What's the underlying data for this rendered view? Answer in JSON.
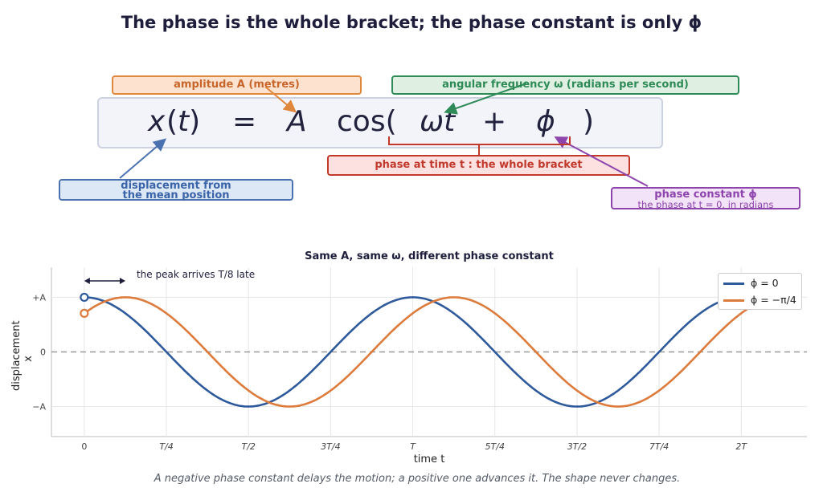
{
  "title": "The phase is the whole bracket; the phase constant is only ϕ",
  "equation": {
    "x": "x",
    "t_arg": "(t)",
    "equals": "=",
    "A": "A",
    "cos": "cos(",
    "omega_t": "ωt",
    "plus": "+",
    "phi": "ϕ",
    "close": ")"
  },
  "callouts": {
    "amplitude": "amplitude A (metres)",
    "angular": "angular frequency ω (radians per second)",
    "phase": "phase at time t :  the whole bracket",
    "displacement_line1": "displacement from",
    "displacement_line2": "the mean position",
    "phase_constant": "phase constant ϕ",
    "phase_constant_sub": "the phase at t = 0, in radians"
  },
  "colors": {
    "series_phi0": "#2e5a9c",
    "series_phi_neg": "#dd7b3c"
  },
  "chart_data": {
    "type": "line",
    "title": "Same A, same ω, different phase constant",
    "xlabel": "time t",
    "ylabel": "displacement x",
    "xlim_periods": [
      -0.1,
      2.2
    ],
    "ylim_amplitudes": [
      -1.55,
      1.55
    ],
    "x_ticks": [
      "0",
      "T/4",
      "T/2",
      "3T/4",
      "T",
      "5T/4",
      "3T/2",
      "7T/4",
      "2T"
    ],
    "x_tick_values_periods": [
      0,
      0.25,
      0.5,
      0.75,
      1,
      1.25,
      1.5,
      1.75,
      2
    ],
    "y_ticks": [
      "+A",
      "0",
      "−A"
    ],
    "y_tick_values_amplitudes": [
      1,
      0,
      -1
    ],
    "x_range_periods": [
      0,
      2.1
    ],
    "series": [
      {
        "name": "ϕ = 0",
        "phase_constant_rad": 0,
        "color": "#2e5a9c"
      },
      {
        "name": "ϕ = −π/4",
        "phase_constant_rad": -0.7853981634,
        "color": "#dd7b3c"
      }
    ],
    "start_markers_amplitudes": [
      1.0,
      0.7071
    ],
    "annotation": "the peak arrives T/8 late",
    "annotation_span_periods": [
      0,
      0.125
    ],
    "grid": true,
    "legend": "top-right"
  },
  "caption": "A negative phase constant delays the motion; a positive one advances it. The shape never changes."
}
